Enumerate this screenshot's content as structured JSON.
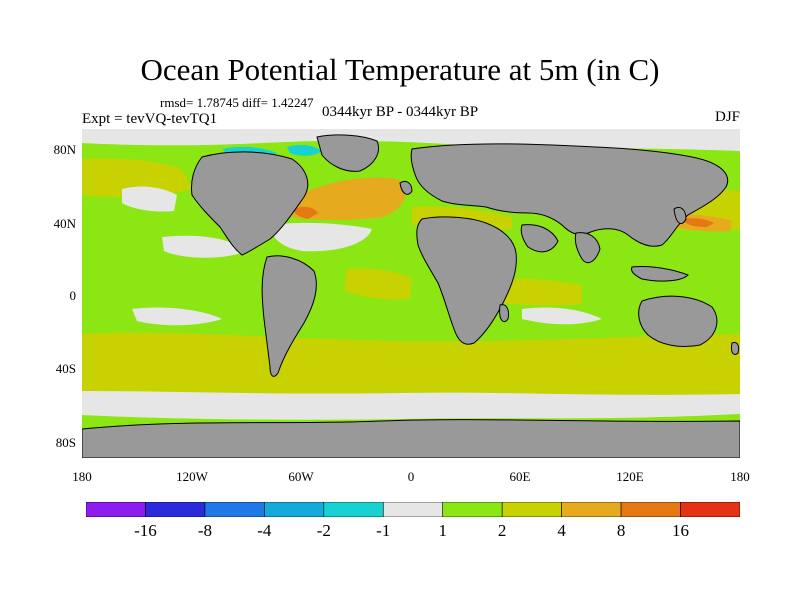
{
  "header": {
    "title": "Ocean Potential Temperature at 5m (in C)",
    "stats": "rmsd= 1.78745 diff= 1.42247",
    "period": "0344kyr BP - 0344kyr BP",
    "experiment": "Expt = tevVQ-tevTQ1",
    "season": "DJF"
  },
  "axes": {
    "y_ticks": [
      "80N",
      "40N",
      "0",
      "40S",
      "80S"
    ],
    "x_ticks": [
      "180",
      "120W",
      "60W",
      "0",
      "60E",
      "120E",
      "180"
    ]
  },
  "colorbar": {
    "colors": [
      "#8c1cf0",
      "#2b2bdc",
      "#1e78e6",
      "#14aadc",
      "#18d2d2",
      "#e6e6e6",
      "#8ce614",
      "#c8d200",
      "#e6aa1e",
      "#e67814",
      "#e63214"
    ],
    "labels": [
      "-16",
      "-8",
      "-4",
      "-2",
      "-1",
      "1",
      "2",
      "4",
      "8",
      "16"
    ]
  },
  "map": {
    "land_color": "#999999",
    "coast_color": "#000000",
    "background_color": "#8ce614"
  }
}
